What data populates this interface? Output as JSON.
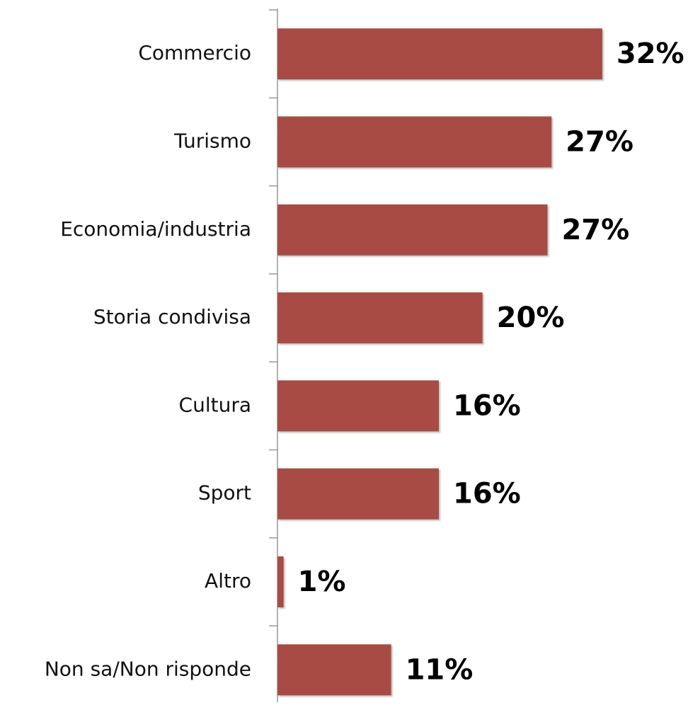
{
  "chart_data": {
    "type": "bar",
    "orientation": "horizontal",
    "categories": [
      "Commercio",
      "Turismo",
      "Economia/industria",
      "Storia condivisa",
      "Cultura",
      "Sport",
      "Altro",
      "Non sa/Non risponde"
    ],
    "values": [
      32,
      27,
      26.6,
      20.2,
      15.9,
      15.9,
      0.6,
      11.2
    ],
    "value_labels": [
      "32%",
      "27%",
      "27%",
      "20%",
      "16%",
      "16%",
      "1%",
      "11%"
    ],
    "color": "#a84b45"
  }
}
